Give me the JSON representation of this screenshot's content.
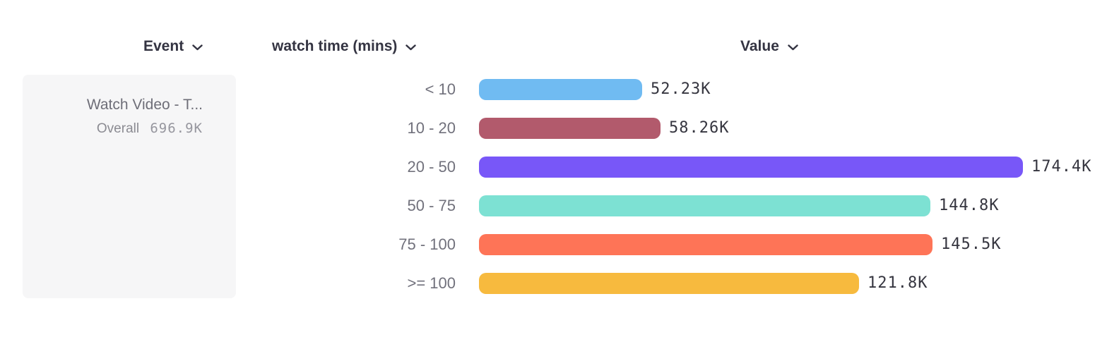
{
  "columns": {
    "event": {
      "label": "Event"
    },
    "breakdown": {
      "label": "watch time (mins)"
    },
    "value": {
      "label": "Value"
    }
  },
  "event_card": {
    "name": "Watch Video - T...",
    "overall_label": "Overall",
    "overall_value": "696.9K"
  },
  "chart_data": {
    "type": "bar",
    "orientation": "horizontal",
    "title": "",
    "xlabel": "Value",
    "ylabel": "watch time (mins)",
    "categories": [
      "< 10",
      "10 - 20",
      "20 - 50",
      "50 - 75",
      "75 - 100",
      ">= 100"
    ],
    "values": [
      52230,
      58260,
      174400,
      144800,
      145500,
      121800
    ],
    "value_labels": [
      "52.23K",
      "58.26K",
      "174.4K",
      "144.8K",
      "145.5K",
      "121.8K"
    ],
    "bar_colors": [
      "#70bbf2",
      "#b25a6c",
      "#7857f8",
      "#7de1d3",
      "#fe7457",
      "#f7ba3e"
    ],
    "xlim": [
      0,
      174400
    ],
    "grid": false,
    "legend": "none"
  },
  "icons": {
    "chevron_down": "chevron-down-icon"
  }
}
